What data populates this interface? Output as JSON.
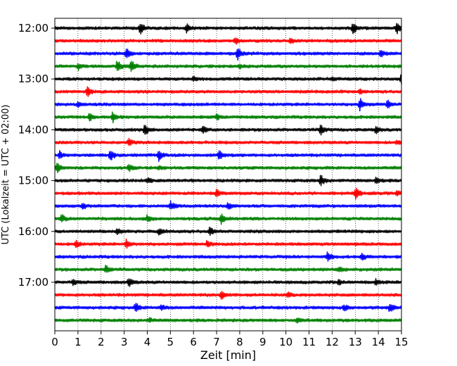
{
  "chart_data": {
    "type": "line",
    "title": "",
    "xlabel": "Zeit  [min]",
    "ylabel": "UTC (Lokalzeit = UTC + 02:00)",
    "xlim": [
      0,
      15
    ],
    "x_ticks": [
      0,
      1,
      2,
      3,
      4,
      5,
      6,
      7,
      8,
      9,
      10,
      11,
      12,
      13,
      14,
      15
    ],
    "x_tick_labels": [
      "0",
      "1",
      "2",
      "3",
      "4",
      "5",
      "6",
      "7",
      "8",
      "9",
      "10",
      "11",
      "12",
      "13",
      "14",
      "15"
    ],
    "y_tick_labels": [
      "12:00",
      "13:00",
      "14:00",
      "15:00",
      "16:00",
      "17:00"
    ],
    "grid": "vertical dotted",
    "row_interval_min": 15,
    "colors": [
      "#000000",
      "#ff0000",
      "#0000ff",
      "#008000"
    ],
    "series": [
      {
        "start": "12:00",
        "color": "#000000",
        "events": [
          [
            3.7,
            0.9
          ],
          [
            5.7,
            0.7
          ],
          [
            12.9,
            1.0
          ],
          [
            14.8,
            0.9
          ]
        ]
      },
      {
        "start": "12:15",
        "color": "#ff0000",
        "events": [
          [
            7.8,
            0.5
          ],
          [
            10.2,
            0.3
          ]
        ]
      },
      {
        "start": "12:30",
        "color": "#0000ff",
        "events": [
          [
            3.1,
            0.8
          ],
          [
            7.9,
            1.0
          ],
          [
            14.1,
            0.6
          ]
        ]
      },
      {
        "start": "12:45",
        "color": "#008000",
        "events": [
          [
            1.0,
            0.5
          ],
          [
            2.7,
            1.0
          ],
          [
            3.3,
            1.0
          ],
          [
            8.0,
            0.3
          ]
        ]
      },
      {
        "start": "13:00",
        "color": "#000000",
        "events": [
          [
            6.0,
            0.3
          ],
          [
            12.0,
            0.3
          ],
          [
            15.0,
            1.0
          ]
        ]
      },
      {
        "start": "13:15",
        "color": "#ff0000",
        "events": [
          [
            1.4,
            0.8
          ],
          [
            13.2,
            0.3
          ]
        ]
      },
      {
        "start": "13:30",
        "color": "#0000ff",
        "events": [
          [
            1.0,
            0.4
          ],
          [
            13.2,
            1.0
          ],
          [
            14.4,
            0.6
          ]
        ]
      },
      {
        "start": "13:45",
        "color": "#008000",
        "events": [
          [
            1.5,
            0.6
          ],
          [
            2.5,
            0.8
          ],
          [
            7.0,
            0.4
          ]
        ]
      },
      {
        "start": "14:00",
        "color": "#000000",
        "events": [
          [
            3.9,
            1.0
          ],
          [
            6.4,
            0.6
          ],
          [
            11.5,
            0.8
          ],
          [
            13.9,
            0.5
          ]
        ]
      },
      {
        "start": "14:15",
        "color": "#ff0000",
        "events": [
          [
            3.2,
            0.5
          ],
          [
            14.8,
            0.3
          ]
        ]
      },
      {
        "start": "14:30",
        "color": "#0000ff",
        "events": [
          [
            0.2,
            0.6
          ],
          [
            2.4,
            1.0
          ],
          [
            4.5,
            0.8
          ],
          [
            7.1,
            0.7
          ]
        ]
      },
      {
        "start": "14:45",
        "color": "#008000",
        "events": [
          [
            0.1,
            0.8
          ],
          [
            3.2,
            0.5
          ],
          [
            4.5,
            0.3
          ]
        ]
      },
      {
        "start": "15:00",
        "color": "#000000",
        "events": [
          [
            4.0,
            0.4
          ],
          [
            11.5,
            0.9
          ],
          [
            13.9,
            0.5
          ]
        ]
      },
      {
        "start": "15:15",
        "color": "#ff0000",
        "events": [
          [
            7.0,
            0.5
          ],
          [
            13.0,
            1.0
          ],
          [
            14.8,
            0.3
          ]
        ]
      },
      {
        "start": "15:30",
        "color": "#0000ff",
        "events": [
          [
            1.2,
            0.5
          ],
          [
            5.0,
            0.7
          ],
          [
            7.5,
            0.6
          ]
        ]
      },
      {
        "start": "15:45",
        "color": "#008000",
        "events": [
          [
            0.3,
            0.6
          ],
          [
            4.0,
            0.5
          ],
          [
            7.2,
            0.8
          ]
        ]
      },
      {
        "start": "16:00",
        "color": "#000000",
        "events": [
          [
            2.7,
            0.4
          ],
          [
            4.5,
            0.5
          ],
          [
            6.7,
            0.6
          ]
        ]
      },
      {
        "start": "16:15",
        "color": "#ff0000",
        "events": [
          [
            0.9,
            0.6
          ],
          [
            3.1,
            0.7
          ],
          [
            6.6,
            0.5
          ]
        ]
      },
      {
        "start": "16:30",
        "color": "#0000ff",
        "events": [
          [
            11.8,
            0.7
          ],
          [
            13.3,
            0.5
          ]
        ]
      },
      {
        "start": "16:45",
        "color": "#008000",
        "events": [
          [
            2.2,
            0.6
          ],
          [
            12.3,
            0.4
          ]
        ]
      },
      {
        "start": "17:00",
        "color": "#000000",
        "events": [
          [
            0.8,
            0.5
          ],
          [
            3.2,
            0.7
          ],
          [
            12.3,
            0.4
          ],
          [
            13.9,
            0.4
          ]
        ]
      },
      {
        "start": "17:15",
        "color": "#ff0000",
        "events": [
          [
            7.2,
            0.7
          ],
          [
            10.1,
            0.3
          ]
        ]
      },
      {
        "start": "17:30",
        "color": "#0000ff",
        "events": [
          [
            3.5,
            0.7
          ],
          [
            4.6,
            0.5
          ],
          [
            12.5,
            0.5
          ],
          [
            14.5,
            0.7
          ]
        ]
      },
      {
        "start": "17:45",
        "color": "#008000",
        "events": [
          [
            4.1,
            0.3
          ],
          [
            10.5,
            0.3
          ]
        ]
      }
    ]
  }
}
